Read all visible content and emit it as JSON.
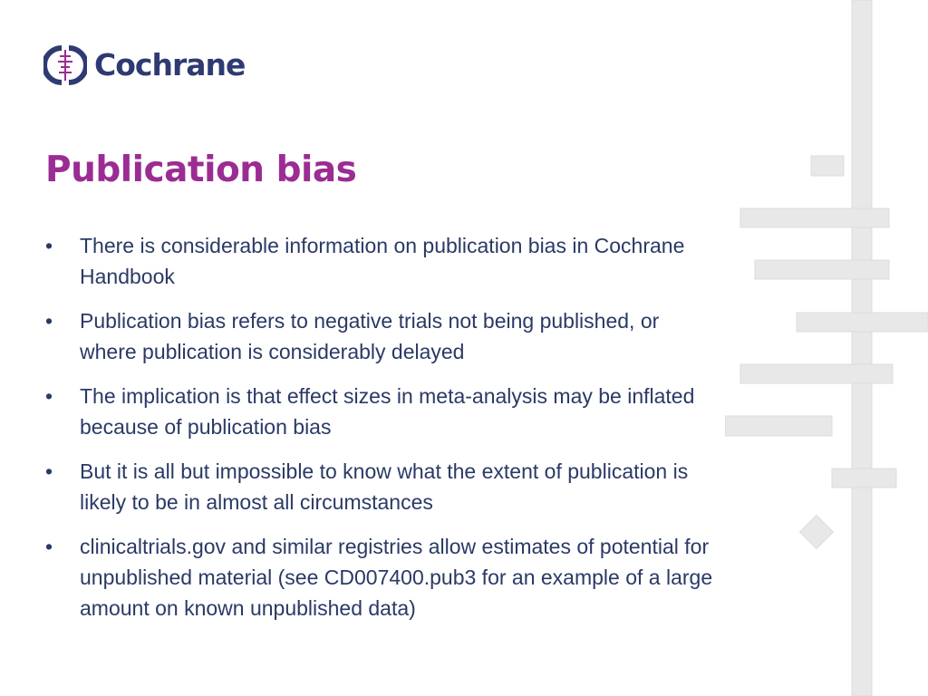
{
  "brand": {
    "name": "Cochrane",
    "icon": "cochrane-logo-icon"
  },
  "slide": {
    "title": "Publication bias",
    "bullet_marker": "•",
    "bullets": [
      "There is considerable information on publication bias in Cochrane Handbook",
      "Publication bias refers to negative trials not being published, or where publication is considerably delayed",
      "The implication is that effect sizes in meta-analysis may be inflated because of publication bias",
      "But it is all but impossible to know what the extent of publication is likely to be in almost all circumstances",
      "clinicaltrials.gov and similar registries allow estimates of potential for unpublished material (see CD007400.pub3 for an example of a large amount on known unpublished data)"
    ]
  },
  "colors": {
    "brand": "#2f3a73",
    "title": "#9b2c93",
    "text": "#2a3a66",
    "decoration": "#e6e6e6"
  }
}
